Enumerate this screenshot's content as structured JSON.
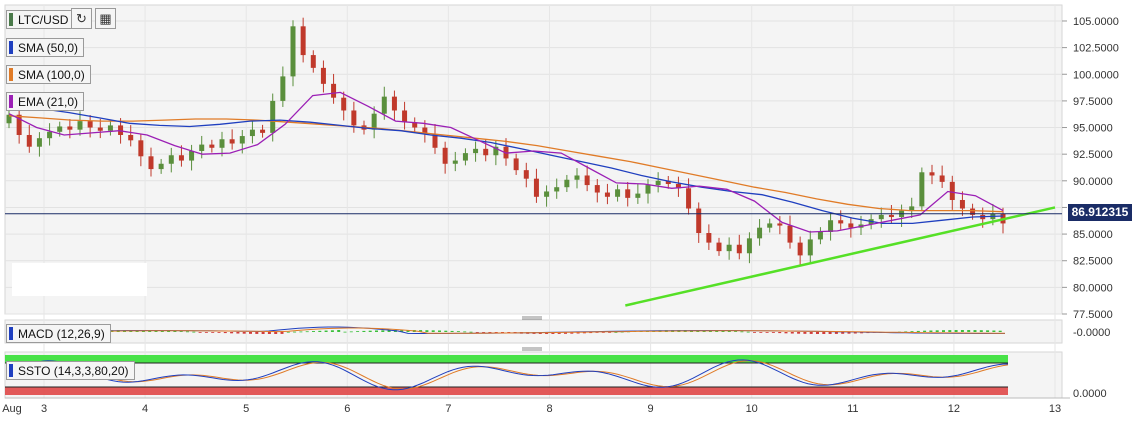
{
  "labels": {
    "symbol": "LTC/USD",
    "sma50": "SMA (50,0)",
    "sma100": "SMA (100,0)",
    "ema21": "EMA (21,0)",
    "macd": "MACD (12,26,9)",
    "ssto": "SSTO (14,3,3,80,20)"
  },
  "colors": {
    "up": "#5a8f3c",
    "down": "#c0392b",
    "sma50": "#1f3fbf",
    "sma100": "#e07b27",
    "ema21": "#9b1fb5",
    "trendline": "#55e026",
    "price_line": "#1a2c66"
  },
  "icons": [
    "refresh-icon",
    "calendar-icon"
  ],
  "current_price": "86.912315",
  "chart_data": {
    "type": "candlestick",
    "title": "LTC/USD",
    "x_ticks": [
      "Aug",
      "3",
      "4",
      "5",
      "6",
      "7",
      "8",
      "9",
      "10",
      "11",
      "12",
      "13"
    ],
    "y_ticks": [
      "105.0000",
      "102.5000",
      "100.0000",
      "97.5000",
      "95.0000",
      "92.5000",
      "90.0000",
      "87.5000",
      "85.0000",
      "82.5000",
      "80.0000",
      "77.5000"
    ],
    "ylim": [
      77.5,
      106.5
    ],
    "candle_closes": [
      96.2,
      94.3,
      93.2,
      94.0,
      94.6,
      95.1,
      94.8,
      95.6,
      95.0,
      94.7,
      95.2,
      94.3,
      93.8,
      92.3,
      91.1,
      91.6,
      92.4,
      91.9,
      92.8,
      93.4,
      93.1,
      93.9,
      93.5,
      94.2,
      94.8,
      94.5,
      97.5,
      99.8,
      104.5,
      101.8,
      100.6,
      99.1,
      97.8,
      96.6,
      95.2,
      94.8,
      96.3,
      97.9,
      96.6,
      95.5,
      95.0,
      94.4,
      93.1,
      91.6,
      91.9,
      92.6,
      93.0,
      92.4,
      93.2,
      92.1,
      91.0,
      90.2,
      88.5,
      89.0,
      89.4,
      90.1,
      90.5,
      89.6,
      88.9,
      88.5,
      89.2,
      88.4,
      88.8,
      89.6,
      90.0,
      89.7,
      89.3,
      87.4,
      85.1,
      84.2,
      83.4,
      84.0,
      83.2,
      84.6,
      85.6,
      86.0,
      85.8,
      84.2,
      83.0,
      84.5,
      85.2,
      86.3,
      86.0,
      85.6,
      85.9,
      86.4,
      86.8,
      86.6,
      87.2,
      87.6,
      90.8,
      90.5,
      89.9,
      88.2,
      87.4,
      86.8,
      86.4,
      86.9,
      86.0
    ],
    "sma50": [
      97.0,
      96.8,
      96.4,
      95.9,
      95.4,
      95.2,
      95.1,
      95.3,
      95.6,
      95.7,
      95.5,
      95.2,
      94.9,
      94.7,
      94.3,
      94.0,
      93.6,
      93.0,
      92.4,
      91.8,
      91.2,
      90.5,
      89.9,
      89.4,
      89.0,
      88.7,
      88.0,
      87.2,
      86.5,
      86.0,
      86.0,
      86.3,
      86.6,
      86.7
    ],
    "sma100": [
      96.1,
      95.9,
      95.7,
      95.6,
      95.6,
      95.7,
      95.8,
      95.8,
      95.7,
      95.5,
      95.3,
      95.1,
      94.9,
      94.6,
      94.3,
      94.0,
      93.7,
      93.3,
      92.8,
      92.3,
      91.8,
      91.2,
      90.6,
      90.0,
      89.4,
      88.9,
      88.3,
      87.8,
      87.4,
      87.2,
      87.2,
      87.2,
      87.1
    ],
    "ema21": [
      96.3,
      95.0,
      94.3,
      94.5,
      94.7,
      94.3,
      93.3,
      92.5,
      92.6,
      93.4,
      95.3,
      98.0,
      98.3,
      97.0,
      95.6,
      95.4,
      95.0,
      93.8,
      92.6,
      92.8,
      92.6,
      91.2,
      89.8,
      89.7,
      89.3,
      89.5,
      89.2,
      88.1,
      86.1,
      85.2,
      85.3,
      85.8,
      86.3,
      86.8,
      89.0,
      88.6,
      87.2
    ],
    "trendline": [
      [
        8.75,
        78.3
      ],
      [
        13.0,
        87.5
      ]
    ],
    "ssto_levels": [
      80,
      20
    ],
    "ssto_ytick": "0.0000",
    "macd_ytick": "-0.0000"
  }
}
